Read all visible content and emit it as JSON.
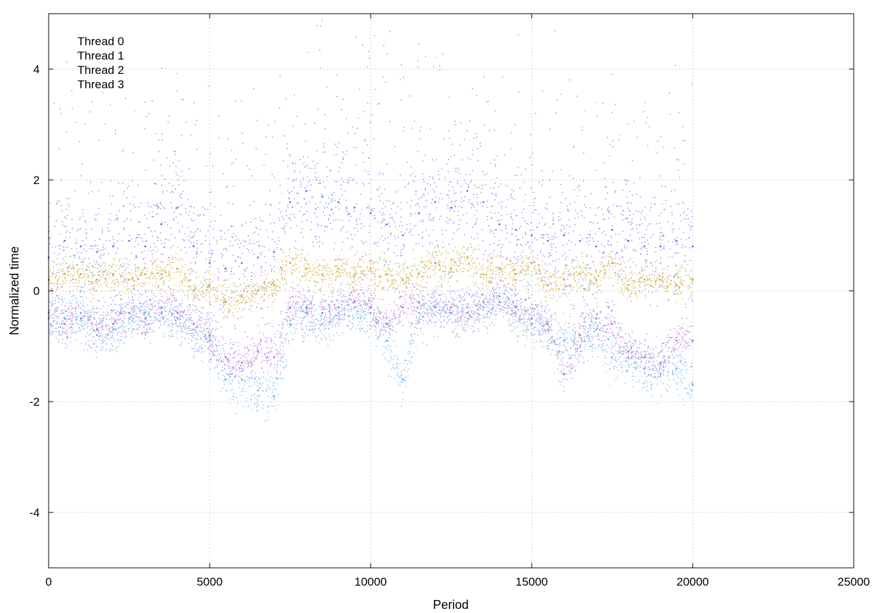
{
  "chart_data": {
    "type": "scatter",
    "title": "",
    "xlabel": "Period",
    "ylabel": "Normalized time",
    "xlim": [
      0,
      25000
    ],
    "ylim": [
      -5,
      5
    ],
    "xticks": [
      0,
      5000,
      10000,
      15000,
      20000,
      25000
    ],
    "yticks": [
      -4,
      -2,
      0,
      2,
      4
    ],
    "grid": true,
    "legend_position": "top-left",
    "x_range_of_data": [
      0,
      20000
    ],
    "series": [
      {
        "name": "Thread 0",
        "color": "#a855d8",
        "x": [
          0,
          500,
          1000,
          1500,
          2000,
          2500,
          3000,
          3500,
          4000,
          4500,
          5000,
          5500,
          6000,
          6500,
          7000,
          7500,
          8000,
          8500,
          9000,
          9500,
          10000,
          10500,
          11000,
          11500,
          12000,
          12500,
          13000,
          13500,
          14000,
          14500,
          15000,
          15500,
          16000,
          16500,
          17000,
          17500,
          18000,
          18500,
          19000,
          19500,
          20000
        ],
        "y": [
          -0.4,
          -0.6,
          -0.5,
          -0.7,
          -0.6,
          -0.4,
          -0.5,
          -0.3,
          -0.4,
          -0.6,
          -0.8,
          -1.2,
          -1.3,
          -1.1,
          -1.2,
          -0.3,
          -0.3,
          -0.4,
          -0.3,
          -0.2,
          -0.3,
          -0.6,
          -0.3,
          -0.2,
          -0.3,
          -0.3,
          -0.4,
          -0.2,
          -0.1,
          -0.3,
          -0.5,
          -0.6,
          -1.5,
          -0.8,
          -0.5,
          -0.6,
          -1.1,
          -1.2,
          -1.3,
          -0.9,
          -0.9
        ]
      },
      {
        "name": "Thread 1",
        "color": "#4f5fe8",
        "x": [
          0,
          500,
          1000,
          1500,
          2000,
          2500,
          3000,
          3500,
          4000,
          4500,
          5000,
          5500,
          6000,
          6500,
          7000,
          7500,
          8000,
          8500,
          9000,
          9500,
          10000,
          10500,
          11000,
          11500,
          12000,
          12500,
          13000,
          13500,
          14000,
          14500,
          15000,
          15500,
          16000,
          16500,
          17000,
          17500,
          18000,
          18500,
          19000,
          19500,
          20000
        ],
        "y": [
          0.6,
          0.9,
          0.8,
          0.7,
          0.8,
          0.9,
          0.8,
          1.2,
          1.5,
          0.8,
          0.5,
          0.4,
          0.5,
          0.6,
          0.7,
          1.6,
          1.8,
          1.7,
          1.6,
          1.5,
          1.4,
          1.2,
          1.0,
          1.4,
          1.6,
          1.5,
          1.8,
          1.6,
          1.2,
          1.1,
          1.0,
          0.9,
          1.0,
          0.9,
          0.8,
          1.1,
          0.9,
          0.8,
          0.8,
          0.9,
          0.8
        ]
      },
      {
        "name": "Thread 2",
        "color": "#5aa9e6",
        "x": [
          0,
          500,
          1000,
          1500,
          2000,
          2500,
          3000,
          3500,
          4000,
          4500,
          5000,
          5500,
          6000,
          6500,
          7000,
          7500,
          8000,
          8500,
          9000,
          9500,
          10000,
          10500,
          11000,
          11500,
          12000,
          12500,
          13000,
          13500,
          14000,
          14500,
          15000,
          15500,
          16000,
          16500,
          17000,
          17500,
          18000,
          18500,
          19000,
          19500,
          20000
        ],
        "y": [
          -0.5,
          -0.5,
          -0.4,
          -0.8,
          -0.7,
          -0.5,
          -0.4,
          -0.4,
          -0.5,
          -0.7,
          -0.9,
          -1.6,
          -1.6,
          -1.8,
          -1.9,
          -0.6,
          -0.4,
          -0.6,
          -0.4,
          -0.3,
          -0.4,
          -0.9,
          -1.6,
          -0.4,
          -0.3,
          -0.4,
          -0.3,
          -0.3,
          -0.2,
          -0.4,
          -0.6,
          -0.7,
          -0.9,
          -1.0,
          -0.7,
          -1.2,
          -1.2,
          -1.4,
          -1.5,
          -1.4,
          -1.7
        ]
      },
      {
        "name": "Thread 3",
        "color": "#c9a227",
        "x": [
          0,
          500,
          1000,
          1500,
          2000,
          2500,
          3000,
          3500,
          4000,
          4500,
          5000,
          5500,
          6000,
          6500,
          7000,
          7500,
          8000,
          8500,
          9000,
          9500,
          10000,
          10500,
          11000,
          11500,
          12000,
          12500,
          13000,
          13500,
          14000,
          14500,
          15000,
          15500,
          16000,
          16500,
          17000,
          17500,
          18000,
          18500,
          19000,
          19500,
          20000
        ],
        "y": [
          0.2,
          0.3,
          0.3,
          0.2,
          0.3,
          0.2,
          0.3,
          0.3,
          0.4,
          0.0,
          0.1,
          -0.2,
          -0.1,
          0.0,
          0.1,
          0.5,
          0.4,
          0.3,
          0.4,
          0.3,
          0.4,
          0.3,
          0.2,
          0.3,
          0.5,
          0.4,
          0.6,
          0.3,
          0.4,
          0.3,
          0.5,
          0.1,
          0.2,
          0.3,
          0.2,
          0.5,
          0.1,
          0.2,
          0.2,
          0.1,
          0.2
        ]
      }
    ]
  }
}
